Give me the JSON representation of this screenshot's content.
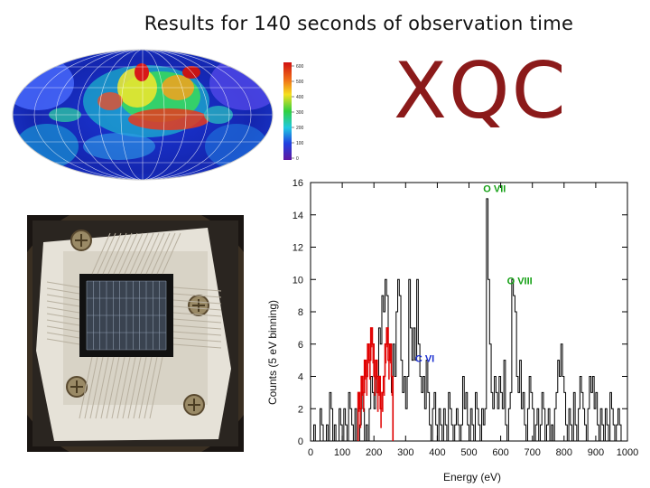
{
  "slide": {
    "title": "Results for 140 seconds of observation time",
    "logo": "XQC",
    "colors": {
      "logo": "#8b1a1a",
      "line_labels": "#14a014",
      "carbon_label": "#1a2fd0",
      "carbon_fill": "#e00000"
    }
  },
  "images": {
    "sky_map": "all-sky-map",
    "detector": "microcalorimeter-array-photo"
  },
  "colorbar": {
    "ticks": [
      "600",
      "500",
      "400",
      "300",
      "200",
      "100",
      "0"
    ]
  },
  "chart_data": {
    "type": "step-histogram",
    "xlabel": "Energy (eV)",
    "ylabel": "Counts (5 eV binning)",
    "xlim": [
      0,
      1000
    ],
    "ylim": [
      0,
      16
    ],
    "xticks": [
      0,
      100,
      200,
      300,
      400,
      500,
      600,
      700,
      800,
      900,
      1000
    ],
    "yticks": [
      0,
      2,
      4,
      6,
      8,
      10,
      12,
      14,
      16
    ],
    "bin_width": 5,
    "grid": false,
    "series": [
      {
        "color": "#000000",
        "x_start": 0,
        "values": [
          0,
          0,
          1,
          0,
          0,
          0,
          2,
          1,
          0,
          0,
          1,
          0,
          3,
          2,
          0,
          1,
          0,
          0,
          2,
          1,
          0,
          2,
          1,
          0,
          3,
          2,
          1,
          0,
          2,
          0,
          0,
          1,
          3,
          2,
          0,
          1,
          0,
          2,
          4,
          3,
          2,
          5,
          4,
          7,
          6,
          9,
          8,
          10,
          9,
          6,
          5,
          3,
          6,
          4,
          8,
          10,
          9,
          5,
          3,
          4,
          2,
          4,
          10,
          7,
          5,
          7,
          5,
          10,
          6,
          4,
          3,
          4,
          2,
          5,
          3,
          1,
          0,
          2,
          3,
          1,
          0,
          2,
          1,
          0,
          2,
          1,
          0,
          3,
          2,
          1,
          0,
          1,
          2,
          1,
          0,
          1,
          4,
          2,
          3,
          1,
          0,
          2,
          1,
          0,
          3,
          2,
          1,
          0,
          2,
          1,
          2,
          15,
          10,
          6,
          3,
          2,
          4,
          3,
          2,
          4,
          3,
          2,
          5,
          1,
          0,
          2,
          3,
          10,
          9,
          8,
          4,
          3,
          5,
          2,
          3,
          1,
          0,
          2,
          4,
          3,
          2,
          0,
          1,
          2,
          0,
          1,
          3,
          2,
          0,
          1,
          2,
          0,
          1,
          0,
          2,
          3,
          5,
          4,
          6,
          4,
          3,
          1,
          0,
          2,
          1,
          0,
          3,
          1,
          0,
          2,
          4,
          3,
          2,
          1,
          0,
          2,
          4,
          3,
          4,
          2,
          3,
          1,
          0,
          2,
          1,
          0,
          2,
          1,
          0,
          3,
          2,
          1,
          0,
          1,
          2,
          1,
          0
        ]
      },
      {
        "color": "#e00000",
        "x_start": 150,
        "values": [
          3,
          2,
          4,
          3,
          5,
          4,
          6,
          5,
          7,
          6,
          4,
          5,
          3,
          4,
          2,
          3,
          4,
          6,
          7,
          5,
          6,
          4
        ]
      }
    ],
    "annotations": [
      {
        "text": "O VII",
        "x": 545,
        "y": 15.4,
        "color": "#14a014"
      },
      {
        "text": "O VIII",
        "x": 620,
        "y": 9.7,
        "color": "#14a014"
      },
      {
        "text": "C VI",
        "x": 330,
        "y": 4.9,
        "color": "#1a2fd0"
      }
    ]
  }
}
